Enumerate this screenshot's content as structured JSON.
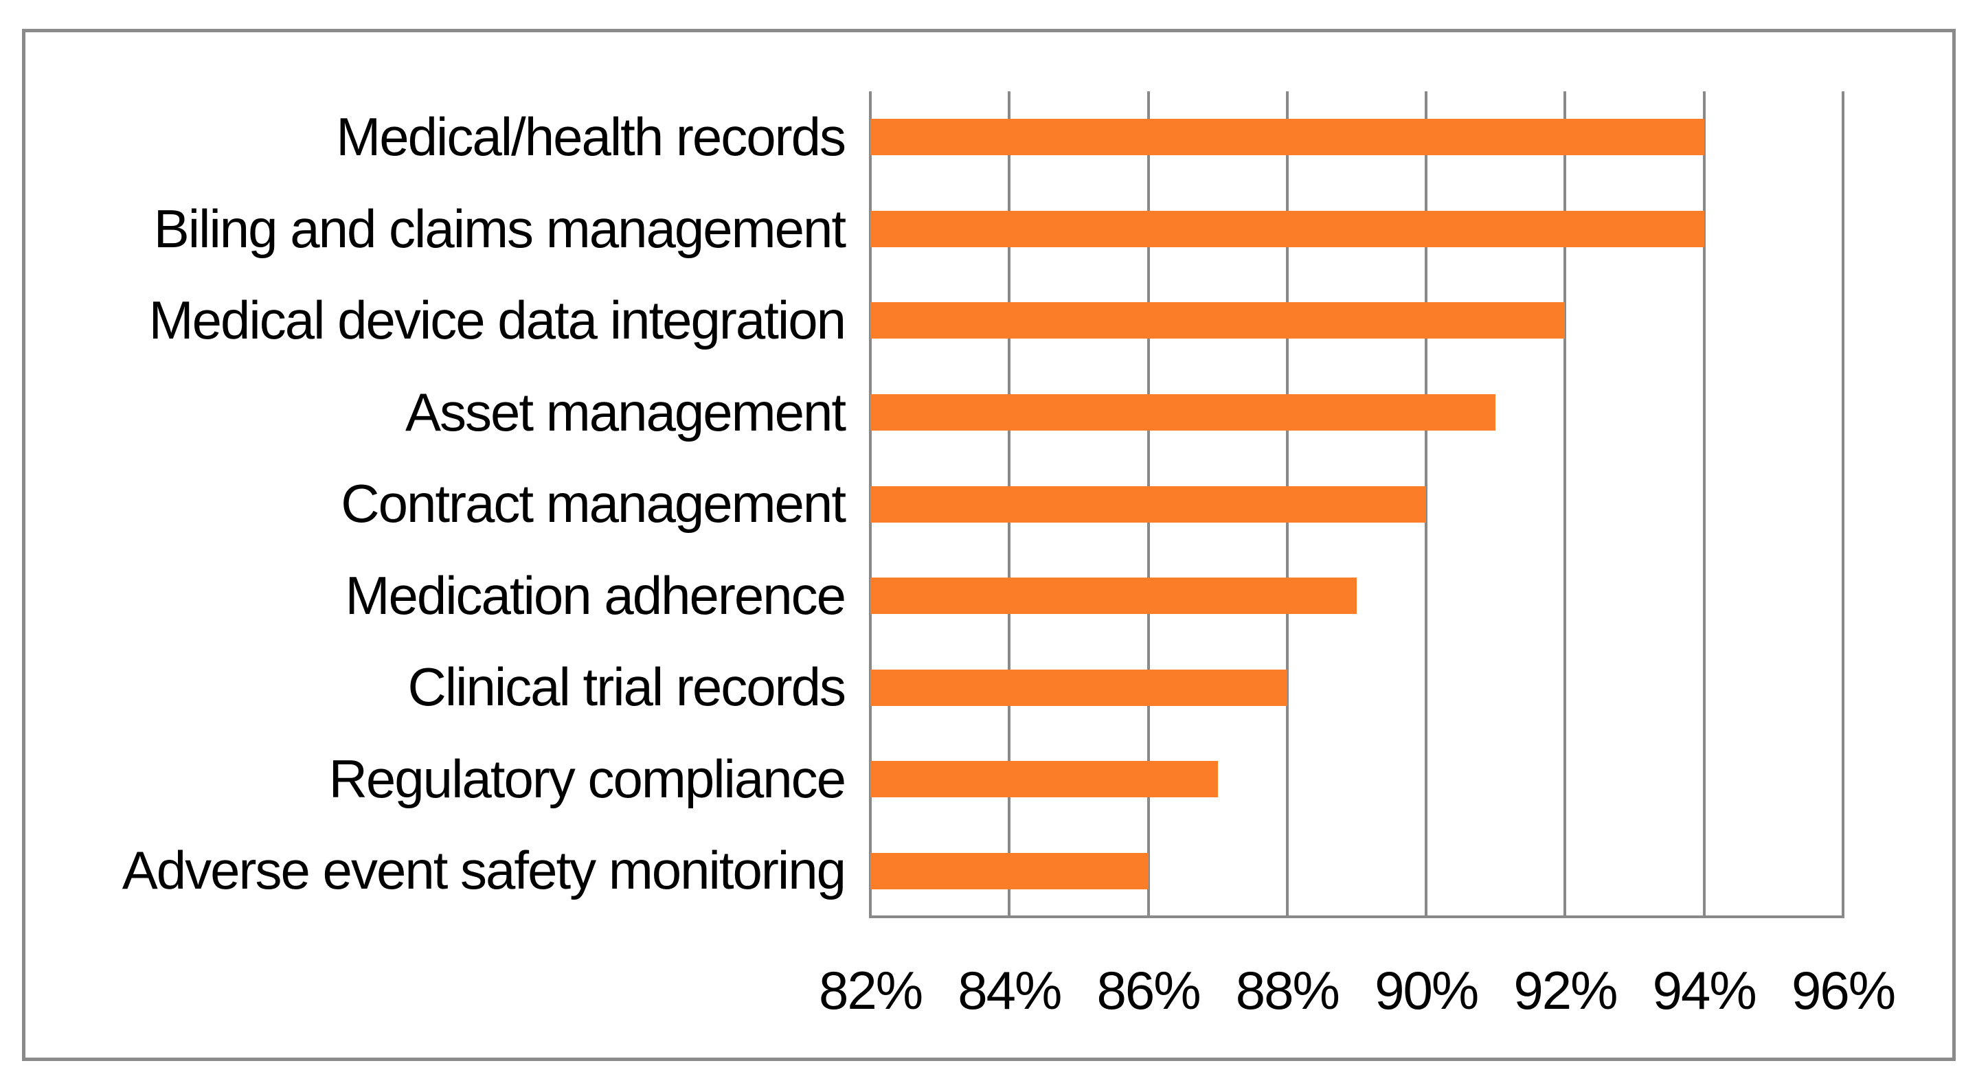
{
  "chart_data": {
    "type": "bar",
    "orientation": "horizontal",
    "title": "",
    "xlabel": "",
    "ylabel": "",
    "categories": [
      "Medical/health records",
      "Biling and claims management",
      "Medical device data integration",
      "Asset management",
      "Contract management",
      "Medication adherence",
      "Clinical trial records",
      "Regulatory compliance",
      "Adverse event safety monitoring"
    ],
    "values": [
      94,
      94,
      92,
      91,
      90,
      89,
      88,
      87,
      86
    ],
    "unit": "%",
    "xlim": [
      82,
      96
    ],
    "x_tick_values": [
      82,
      84,
      86,
      88,
      90,
      92,
      94,
      96
    ],
    "x_tick_labels": [
      "82%",
      "84%",
      "86%",
      "88%",
      "90%",
      "92%",
      "94%",
      "96%"
    ],
    "grid": "vertical-gridlines-on",
    "legend": "none",
    "colors": {
      "bar": "#fb7d27",
      "gridline": "#898989",
      "frame": "#8a8a8a",
      "text": "#000000",
      "background": "#ffffff"
    }
  }
}
